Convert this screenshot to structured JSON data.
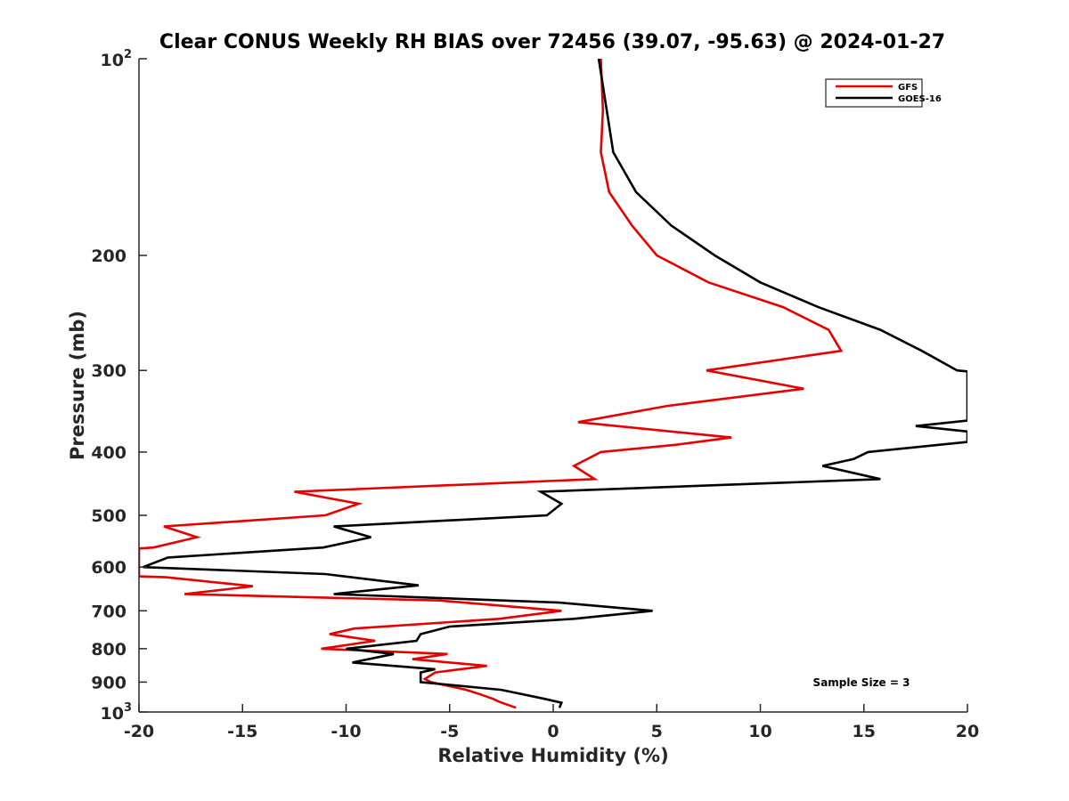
{
  "chart_data": {
    "type": "line",
    "title": "Clear CONUS Weekly RH BIAS over 72456 (39.07, -95.63) @ 2024-01-27",
    "xlabel": "Relative Humidity (%)",
    "ylabel": "Pressure (mb)",
    "xlim": [
      -20,
      20
    ],
    "ylim": [
      100,
      1000
    ],
    "yscale": "log",
    "y_reversed": true,
    "grid": false,
    "xticks": [
      -20,
      -15,
      -10,
      -5,
      0,
      5,
      10,
      15,
      20
    ],
    "xtick_labels": [
      "-20",
      "-15",
      "-10",
      "-5",
      "0",
      "5",
      "10",
      "15",
      "20"
    ],
    "yticks": [
      100,
      200,
      300,
      400,
      500,
      600,
      700,
      800,
      900,
      1000
    ],
    "ytick_labels": [
      {
        "base": "10",
        "exp": "2"
      },
      {
        "base": "200",
        "exp": ""
      },
      {
        "base": "300",
        "exp": ""
      },
      {
        "base": "400",
        "exp": ""
      },
      {
        "base": "500",
        "exp": ""
      },
      {
        "base": "600",
        "exp": ""
      },
      {
        "base": "700",
        "exp": ""
      },
      {
        "base": "800",
        "exp": ""
      },
      {
        "base": "900",
        "exp": ""
      },
      {
        "base": "10",
        "exp": "3"
      }
    ],
    "legend": {
      "position": "top-right",
      "entries": [
        "GFS",
        "GOES-16"
      ]
    },
    "annotation": "Sample Size = 3",
    "series": [
      {
        "name": "GFS",
        "color": "#e60000",
        "points": [
          [
            2.3,
            100
          ],
          [
            2.4,
            120
          ],
          [
            2.3,
            139
          ],
          [
            2.7,
            160
          ],
          [
            3.8,
            180
          ],
          [
            5.0,
            200
          ],
          [
            7.5,
            220
          ],
          [
            11.1,
            240
          ],
          [
            13.3,
            260
          ],
          [
            13.9,
            280
          ],
          [
            7.4,
            300
          ],
          [
            12.1,
            320
          ],
          [
            5.5,
            340
          ],
          [
            1.2,
            360
          ],
          [
            8.6,
            380
          ],
          [
            5.9,
            390
          ],
          [
            2.3,
            400
          ],
          [
            1.0,
            420
          ],
          [
            2.0,
            440
          ],
          [
            -12.5,
            460
          ],
          [
            -9.4,
            480
          ],
          [
            -11.0,
            500
          ],
          [
            -18.8,
            520
          ],
          [
            -17.2,
            540
          ],
          [
            -19.3,
            560
          ],
          [
            -20.0,
            562
          ],
          [
            -20.0,
            620
          ],
          [
            -18.7,
            622
          ],
          [
            -14.5,
            642
          ],
          [
            -17.8,
            660
          ],
          [
            -5.5,
            675
          ],
          [
            0.4,
            700
          ],
          [
            -2.6,
            720
          ],
          [
            -9.6,
            745
          ],
          [
            -10.8,
            760
          ],
          [
            -8.6,
            778
          ],
          [
            -11.2,
            800
          ],
          [
            -5.1,
            815
          ],
          [
            -6.8,
            830
          ],
          [
            -3.2,
            850
          ],
          [
            -5.7,
            870
          ],
          [
            -6.2,
            890
          ],
          [
            -5.9,
            900
          ],
          [
            -4.2,
            925
          ],
          [
            -3.5,
            940
          ],
          [
            -2.9,
            955
          ],
          [
            -2.6,
            965
          ],
          [
            -1.8,
            985
          ]
        ]
      },
      {
        "name": "GOES-16",
        "color": "#000000",
        "points": [
          [
            2.2,
            100
          ],
          [
            2.9,
            139
          ],
          [
            4.0,
            160
          ],
          [
            5.7,
            180
          ],
          [
            7.8,
            200
          ],
          [
            10.0,
            220
          ],
          [
            12.8,
            240
          ],
          [
            15.8,
            260
          ],
          [
            17.8,
            280
          ],
          [
            19.5,
            300
          ],
          [
            20.0,
            301
          ],
          [
            20.0,
            358
          ],
          [
            17.5,
            365
          ],
          [
            20.0,
            372
          ],
          [
            20.0,
            386
          ],
          [
            15.2,
            400
          ],
          [
            14.5,
            410
          ],
          [
            13.0,
            420
          ],
          [
            15.8,
            440
          ],
          [
            -0.6,
            460
          ],
          [
            0.4,
            480
          ],
          [
            -0.3,
            500
          ],
          [
            -10.6,
            520
          ],
          [
            -8.8,
            540
          ],
          [
            -11.1,
            560
          ],
          [
            -18.6,
            580
          ],
          [
            -19.8,
            600
          ],
          [
            -11.0,
            615
          ],
          [
            -6.5,
            640
          ],
          [
            -10.6,
            660
          ],
          [
            0.3,
            680
          ],
          [
            4.8,
            700
          ],
          [
            1.0,
            720
          ],
          [
            -5.0,
            740
          ],
          [
            -6.4,
            760
          ],
          [
            -6.6,
            778
          ],
          [
            -10.0,
            800
          ],
          [
            -7.7,
            815
          ],
          [
            -9.7,
            840
          ],
          [
            -5.7,
            860
          ],
          [
            -6.4,
            870
          ],
          [
            -6.4,
            900
          ],
          [
            -2.5,
            925
          ],
          [
            -0.4,
            955
          ],
          [
            0.4,
            968
          ],
          [
            0.3,
            985
          ]
        ]
      }
    ]
  }
}
